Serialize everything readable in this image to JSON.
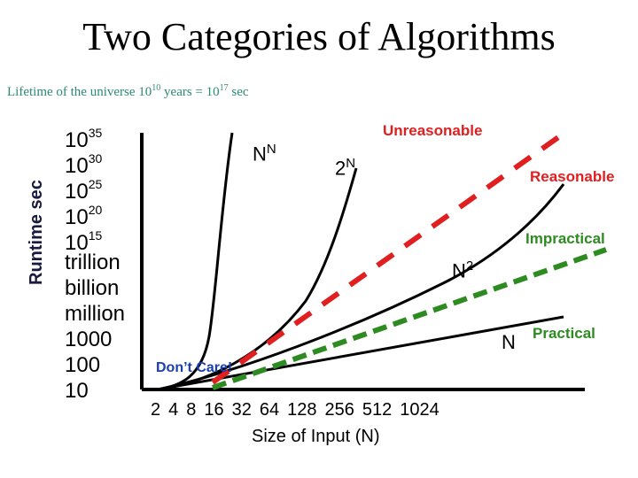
{
  "chart_data": {
    "type": "line",
    "title": "Two Categories of Algorithms",
    "subtitle": {
      "prefix": "Lifetime of the universe 10",
      "exp1": "10",
      "middle": " years = 10",
      "exp2": "17",
      "suffix": " sec"
    },
    "ylabel": "Runtime sec",
    "xlabel": "Size of Input (N)",
    "x_ticks": [
      "2",
      "4",
      "8",
      "16",
      "32",
      "64",
      "128",
      "256",
      "512",
      "1024"
    ],
    "y_ticks": [
      {
        "base": "10",
        "exp": "35"
      },
      {
        "base": "10",
        "exp": "30"
      },
      {
        "base": "10",
        "exp": "25"
      },
      {
        "base": "10",
        "exp": "20"
      },
      {
        "base": "10",
        "exp": "15"
      },
      {
        "base": "trillion",
        "exp": ""
      },
      {
        "base": "billion",
        "exp": ""
      },
      {
        "base": "million",
        "exp": ""
      },
      {
        "base": "1000",
        "exp": ""
      },
      {
        "base": "100",
        "exp": ""
      },
      {
        "base": "10",
        "exp": ""
      }
    ],
    "curves": [
      {
        "label_base": "N",
        "label_exp": "N",
        "color": "#000000"
      },
      {
        "label_base": "2",
        "label_exp": "N",
        "color": "#000000"
      },
      {
        "label_base": "N",
        "label_exp": "2",
        "color": "#000000"
      },
      {
        "label_base": "N",
        "label_exp": "",
        "color": "#000000"
      }
    ],
    "boundaries": [
      {
        "label": "Unreasonable",
        "color": "#e02020",
        "style": "dashed"
      },
      {
        "label": "Reasonable",
        "color": "#e02020",
        "style": "dashed"
      },
      {
        "label": "Impractical",
        "color": "#2e8b22",
        "style": "dashed"
      },
      {
        "label": "Practical",
        "color": "#2e8b22",
        "style": "dashed"
      }
    ],
    "annotations": [
      {
        "label": "Don’t Care!",
        "color": "#1a3fb0"
      }
    ],
    "grid": false
  }
}
